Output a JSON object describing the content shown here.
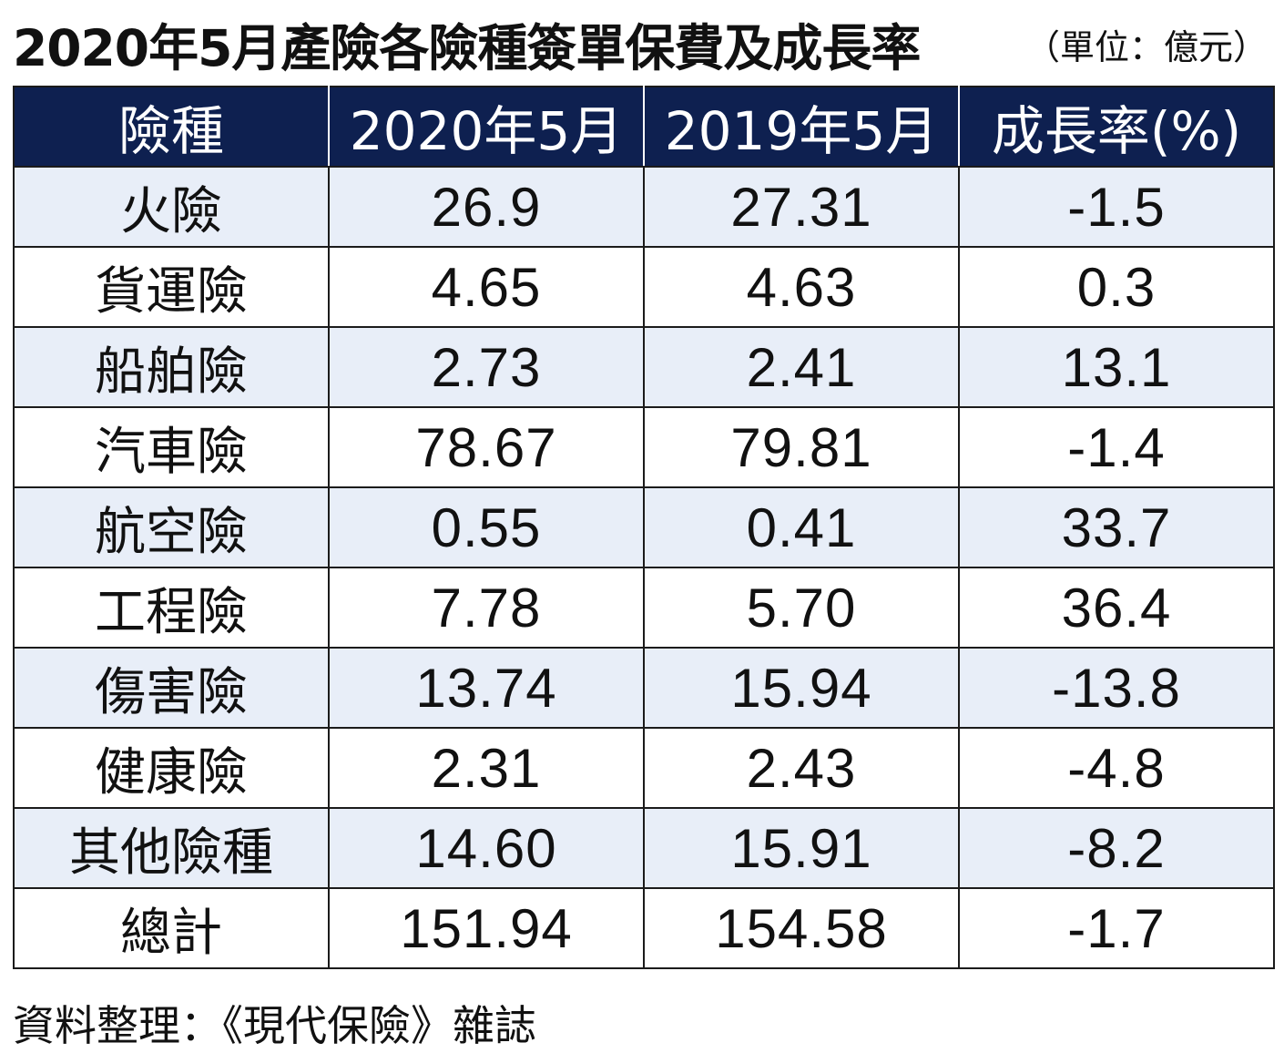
{
  "title": "2020年5月產險各險種簽單保費及成長率",
  "unit": "（單位：億元）",
  "columns": [
    "險種",
    "2020年5月",
    "2019年5月",
    "成長率(%)"
  ],
  "rows": [
    {
      "type": "火險",
      "y2020": "26.9",
      "y2019": "27.31",
      "growth": "-1.5"
    },
    {
      "type": "貨運險",
      "y2020": "4.65",
      "y2019": "4.63",
      "growth": "0.3"
    },
    {
      "type": "船舶險",
      "y2020": "2.73",
      "y2019": "2.41",
      "growth": "13.1"
    },
    {
      "type": "汽車險",
      "y2020": "78.67",
      "y2019": "79.81",
      "growth": "-1.4"
    },
    {
      "type": "航空險",
      "y2020": "0.55",
      "y2019": "0.41",
      "growth": "33.7"
    },
    {
      "type": "工程險",
      "y2020": "7.78",
      "y2019": "5.70",
      "growth": "36.4"
    },
    {
      "type": "傷害險",
      "y2020": "13.74",
      "y2019": "15.94",
      "growth": "-13.8"
    },
    {
      "type": "健康險",
      "y2020": "2.31",
      "y2019": "2.43",
      "growth": "-4.8"
    },
    {
      "type": "其他險種",
      "y2020": "14.60",
      "y2019": "15.91",
      "growth": "-8.2"
    },
    {
      "type": "總計",
      "y2020": "151.94",
      "y2019": "154.58",
      "growth": "-1.7"
    }
  ],
  "source": "資料整理：《現代保險》雜誌",
  "colors": {
    "header_bg": "#0e2050",
    "stripe": "#e8eef8"
  }
}
